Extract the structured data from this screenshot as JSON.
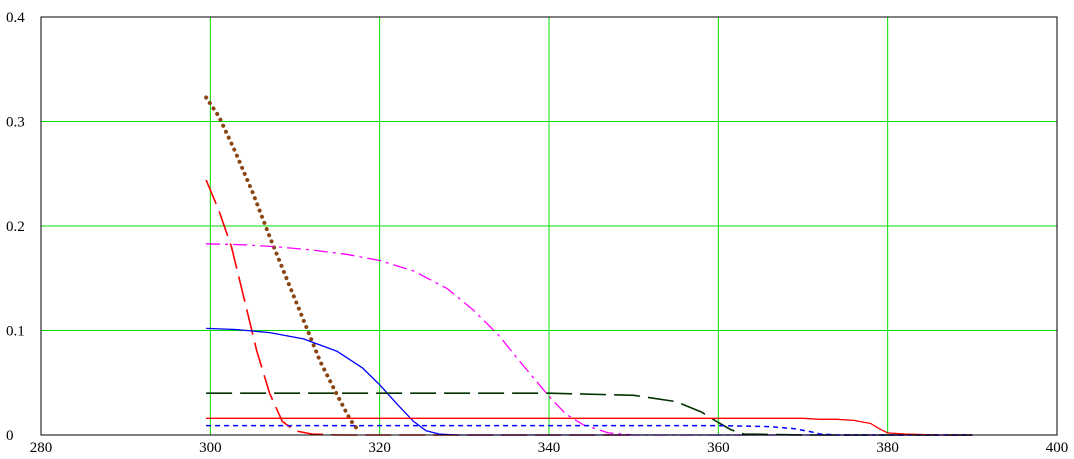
{
  "chart_data": {
    "type": "line",
    "title": "",
    "xlabel": "",
    "ylabel": "",
    "xlim": [
      280,
      400
    ],
    "ylim": [
      0,
      0.4
    ],
    "grid": true,
    "x_ticks": [
      280,
      300,
      320,
      340,
      360,
      380,
      400
    ],
    "y_ticks": [
      0,
      0.1,
      0.2,
      0.3,
      0.4
    ],
    "x_tick_labels": [
      "280",
      "300",
      "320",
      "340",
      "360",
      "380",
      "400"
    ],
    "y_tick_labels": [
      "0",
      "0.1",
      "0.2",
      "0.3",
      "0.4"
    ],
    "colors": {
      "grid": "#00dd00",
      "axes": "#000000"
    },
    "series": [
      {
        "color": "#8B4513",
        "style": "dotted-heavy",
        "x": [
          299.5,
          301,
          303,
          305,
          307,
          309,
          311,
          313,
          315,
          316.5,
          317.5
        ],
        "y": [
          0.323,
          0.305,
          0.27,
          0.232,
          0.19,
          0.15,
          0.11,
          0.07,
          0.038,
          0.015,
          0.004
        ]
      },
      {
        "color": "#ff0000",
        "style": "long-dash",
        "x": [
          299.5,
          301,
          302.5,
          304,
          305.5,
          307,
          308.5,
          310,
          312,
          315,
          320,
          330,
          340,
          350
        ],
        "y": [
          0.244,
          0.215,
          0.18,
          0.13,
          0.08,
          0.04,
          0.013,
          0.004,
          0.001,
          0,
          0,
          0,
          0,
          0
        ]
      },
      {
        "color": "#ff00ff",
        "style": "dash-dot",
        "x": [
          299.5,
          304,
          308,
          312,
          316,
          320,
          324,
          328,
          331,
          334,
          337,
          340,
          342,
          344,
          347,
          350,
          360,
          370,
          380,
          390
        ],
        "y": [
          0.183,
          0.182,
          0.18,
          0.177,
          0.173,
          0.167,
          0.157,
          0.14,
          0.12,
          0.096,
          0.066,
          0.037,
          0.02,
          0.01,
          0.002,
          0,
          0,
          0,
          0,
          0
        ]
      },
      {
        "color": "#0000ff",
        "style": "solid",
        "x": [
          299.5,
          303,
          307,
          311,
          315,
          318,
          320,
          322,
          324,
          325.5,
          327,
          329,
          332,
          340,
          360,
          380,
          390
        ],
        "y": [
          0.102,
          0.101,
          0.098,
          0.092,
          0.08,
          0.064,
          0.048,
          0.03,
          0.013,
          0.004,
          0.001,
          0,
          0,
          0,
          0,
          0,
          0
        ]
      },
      {
        "color": "#003300",
        "style": "long-dash",
        "x": [
          299.5,
          320,
          340,
          350,
          355,
          358,
          360,
          361.5,
          363,
          370,
          380,
          390
        ],
        "y": [
          0.04,
          0.04,
          0.04,
          0.038,
          0.032,
          0.022,
          0.012,
          0.005,
          0.001,
          0,
          0,
          0
        ]
      },
      {
        "color": "#ff0000",
        "style": "solid",
        "x": [
          299.5,
          320,
          340,
          360,
          370,
          372,
          374,
          376,
          378,
          379,
          380,
          382,
          386,
          390
        ],
        "y": [
          0.016,
          0.016,
          0.016,
          0.016,
          0.016,
          0.015,
          0.015,
          0.014,
          0.011,
          0.006,
          0.002,
          0.001,
          0,
          0
        ]
      },
      {
        "color": "#0000ff",
        "style": "short-dash",
        "x": [
          299.5,
          320,
          340,
          360,
          366,
          369,
          371,
          372,
          374,
          380,
          390
        ],
        "y": [
          0.009,
          0.009,
          0.009,
          0.009,
          0.008,
          0.006,
          0.003,
          0.001,
          0,
          0,
          0
        ]
      }
    ]
  }
}
